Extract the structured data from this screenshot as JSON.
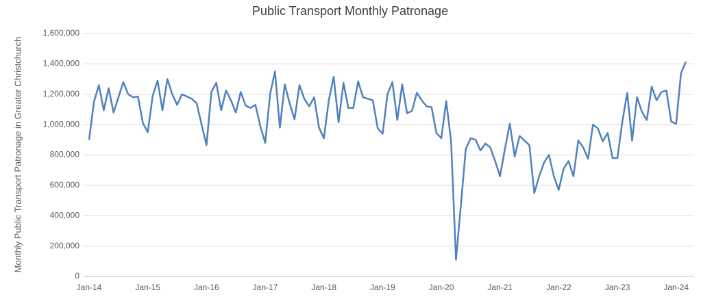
{
  "chart_data": {
    "type": "line",
    "title": "Public Transport Monthly Patronage",
    "y_label": "Monthly Public Transport Patronage in Greater Christchurch",
    "categories": [
      "Jan-14",
      null,
      null,
      null,
      null,
      null,
      null,
      null,
      null,
      null,
      null,
      null,
      "Jan-15",
      null,
      null,
      null,
      null,
      null,
      null,
      null,
      null,
      null,
      null,
      null,
      "Jan-16",
      null,
      null,
      null,
      null,
      null,
      null,
      null,
      null,
      null,
      null,
      null,
      "Jan-17",
      null,
      null,
      null,
      null,
      null,
      null,
      null,
      null,
      null,
      null,
      null,
      "Jan-18",
      null,
      null,
      null,
      null,
      null,
      null,
      null,
      null,
      null,
      null,
      null,
      "Jan-19",
      null,
      null,
      null,
      null,
      null,
      null,
      null,
      null,
      null,
      null,
      null,
      "Jan-20",
      null,
      null,
      null,
      null,
      null,
      null,
      null,
      null,
      null,
      null,
      null,
      "Jan-21",
      null,
      null,
      null,
      null,
      null,
      null,
      null,
      null,
      null,
      null,
      null,
      "Jan-22",
      null,
      null,
      null,
      null,
      null,
      null,
      null,
      null,
      null,
      null,
      null,
      "Jan-23",
      null,
      null,
      null,
      null,
      null,
      null,
      null,
      null,
      null,
      null,
      null,
      "Jan-24",
      null,
      null
    ],
    "series": [
      {
        "name": "Patronage",
        "color": "#4f81bd",
        "values": [
          900000,
          1150000,
          1260000,
          1095000,
          1240000,
          1080000,
          1180000,
          1280000,
          1200000,
          1180000,
          1185000,
          1010000,
          950000,
          1190000,
          1290000,
          1095000,
          1300000,
          1200000,
          1130000,
          1200000,
          1185000,
          1170000,
          1140000,
          1000000,
          865000,
          1215000,
          1275000,
          1095000,
          1225000,
          1160000,
          1080000,
          1215000,
          1125000,
          1110000,
          1130000,
          990000,
          880000,
          1200000,
          1350000,
          980000,
          1265000,
          1140000,
          1035000,
          1260000,
          1170000,
          1120000,
          1180000,
          980000,
          910000,
          1160000,
          1315000,
          1015000,
          1275000,
          1110000,
          1110000,
          1285000,
          1180000,
          1170000,
          1160000,
          975000,
          940000,
          1200000,
          1280000,
          1030000,
          1265000,
          1075000,
          1090000,
          1210000,
          1160000,
          1120000,
          1115000,
          945000,
          910000,
          1155000,
          890000,
          110000,
          470000,
          840000,
          910000,
          900000,
          830000,
          875000,
          850000,
          760000,
          660000,
          840000,
          1005000,
          790000,
          925000,
          895000,
          865000,
          550000,
          660000,
          750000,
          800000,
          660000,
          570000,
          710000,
          760000,
          660000,
          895000,
          850000,
          775000,
          1000000,
          975000,
          890000,
          945000,
          780000,
          780000,
          1020000,
          1210000,
          895000,
          1180000,
          1085000,
          1030000,
          1250000,
          1160000,
          1215000,
          1225000,
          1020000,
          1005000,
          1340000,
          1415000
        ]
      }
    ],
    "ylim": [
      0,
      1600000
    ],
    "yticks": [
      0,
      {
        "value": 200000,
        "label": "200,000"
      },
      {
        "value": 400000,
        "label": "400,000"
      },
      {
        "value": 600000,
        "label": "600,000"
      },
      {
        "value": 800000,
        "label": "800,000"
      },
      {
        "value": 1000000,
        "label": "1,000,000"
      },
      {
        "value": 1200000,
        "label": "1,200,000"
      },
      {
        "value": 1400000,
        "label": "1,400,000"
      },
      {
        "value": 1600000,
        "label": "1,600,000"
      }
    ],
    "grid": true
  }
}
